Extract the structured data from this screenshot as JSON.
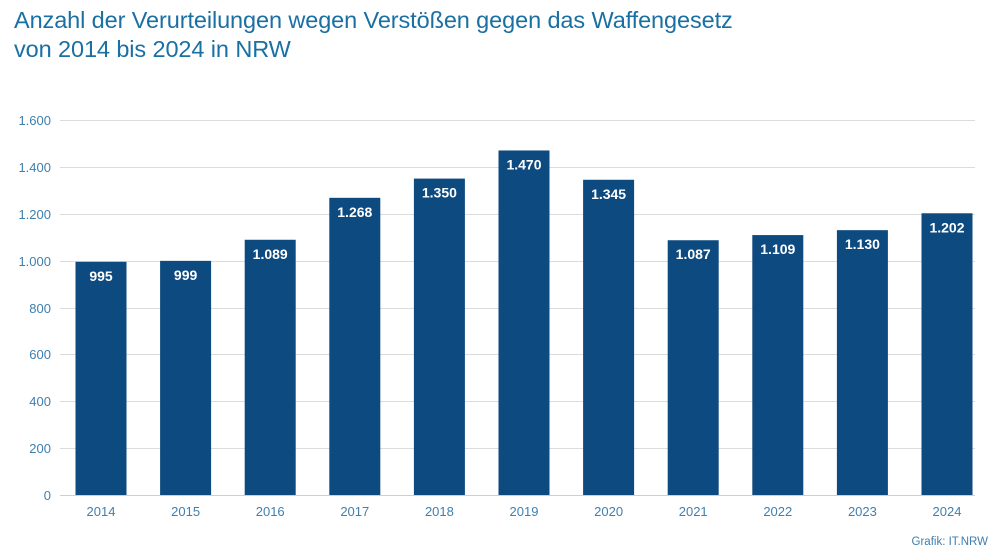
{
  "chart_data": {
    "type": "bar",
    "title": "Anzahl der Verurteilungen wegen Verstößen gegen das Waffengesetz",
    "subtitle": "von 2014 bis 2024 in NRW",
    "title_lines": [
      "Anzahl der Verurteilungen wegen Verstößen gegen das Waffengesetz",
      "von 2014 bis 2024 in NRW"
    ],
    "categories": [
      "2014",
      "2015",
      "2016",
      "2017",
      "2018",
      "2019",
      "2020",
      "2021",
      "2022",
      "2023",
      "2024"
    ],
    "values": [
      995,
      999,
      1089,
      1268,
      1350,
      1470,
      1345,
      1087,
      1109,
      1130,
      1202
    ],
    "data_labels": [
      "995",
      "999",
      "1.089",
      "1.268",
      "1.350",
      "1.470",
      "1.345",
      "1.087",
      "1.109",
      "1.130",
      "1.202"
    ],
    "xlabel": "",
    "ylabel": "",
    "ylim": [
      0,
      1600
    ],
    "yticks": [
      0,
      200,
      400,
      600,
      800,
      1000,
      1200,
      1400,
      1600
    ],
    "ytick_labels": [
      "0",
      "200",
      "400",
      "600",
      "800",
      "1.000",
      "1.200",
      "1.400",
      "1.600"
    ],
    "grid": true,
    "legend": "none",
    "colors": {
      "bar": "#0d4a80",
      "title": "#1a6fa3",
      "tick_text": "#3f7fae",
      "grid": "#dcdcdc",
      "label_text": "#ffffff"
    }
  },
  "footer": {
    "source": "Grafik: IT.NRW"
  }
}
